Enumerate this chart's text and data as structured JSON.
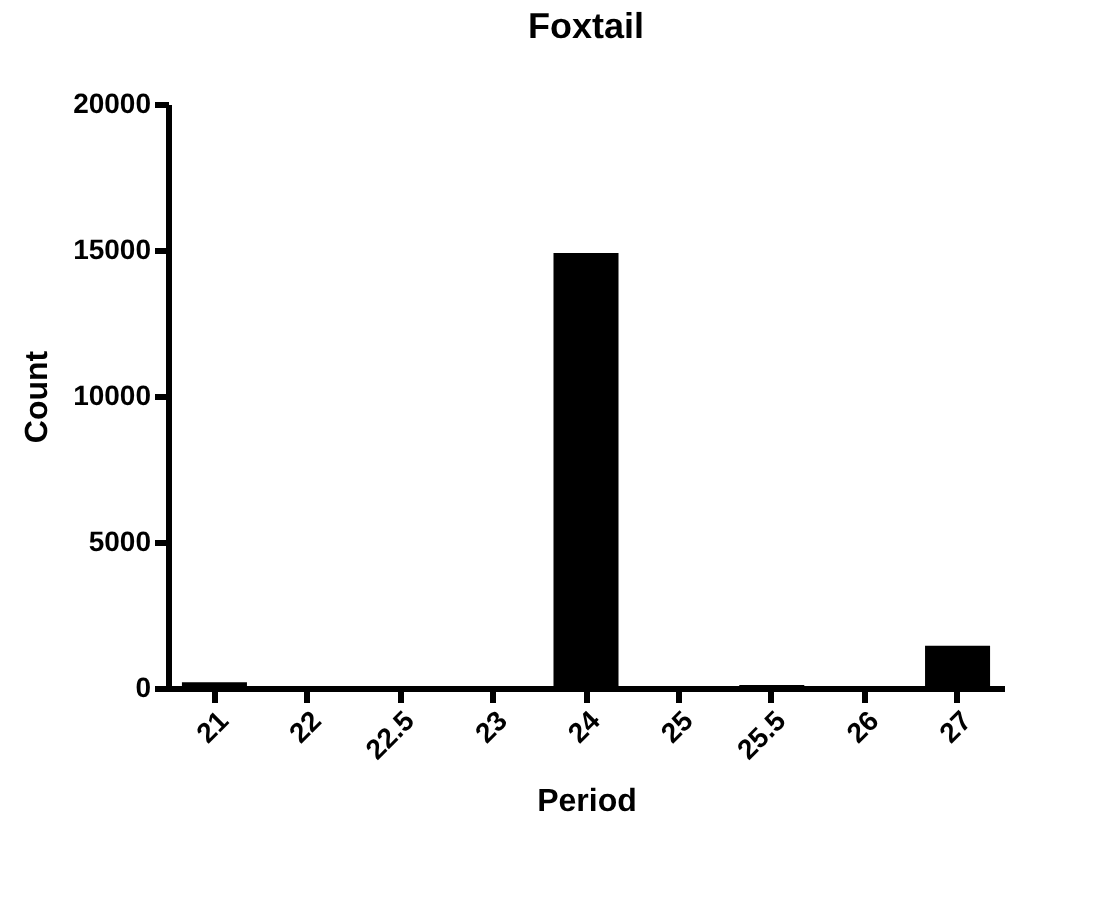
{
  "chart_data": {
    "type": "bar",
    "title": "Foxtail",
    "xlabel": "Period",
    "ylabel": "Count",
    "categories": [
      "21",
      "22",
      "22.5",
      "23",
      "24",
      "25",
      "25.5",
      "26",
      "27"
    ],
    "values": [
      200,
      0,
      0,
      0,
      14900,
      0,
      100,
      0,
      1450
    ],
    "color": "#000000",
    "ylim": [
      0,
      20000
    ],
    "yticks": [
      0,
      5000,
      10000,
      15000,
      20000
    ],
    "grid": false
  }
}
